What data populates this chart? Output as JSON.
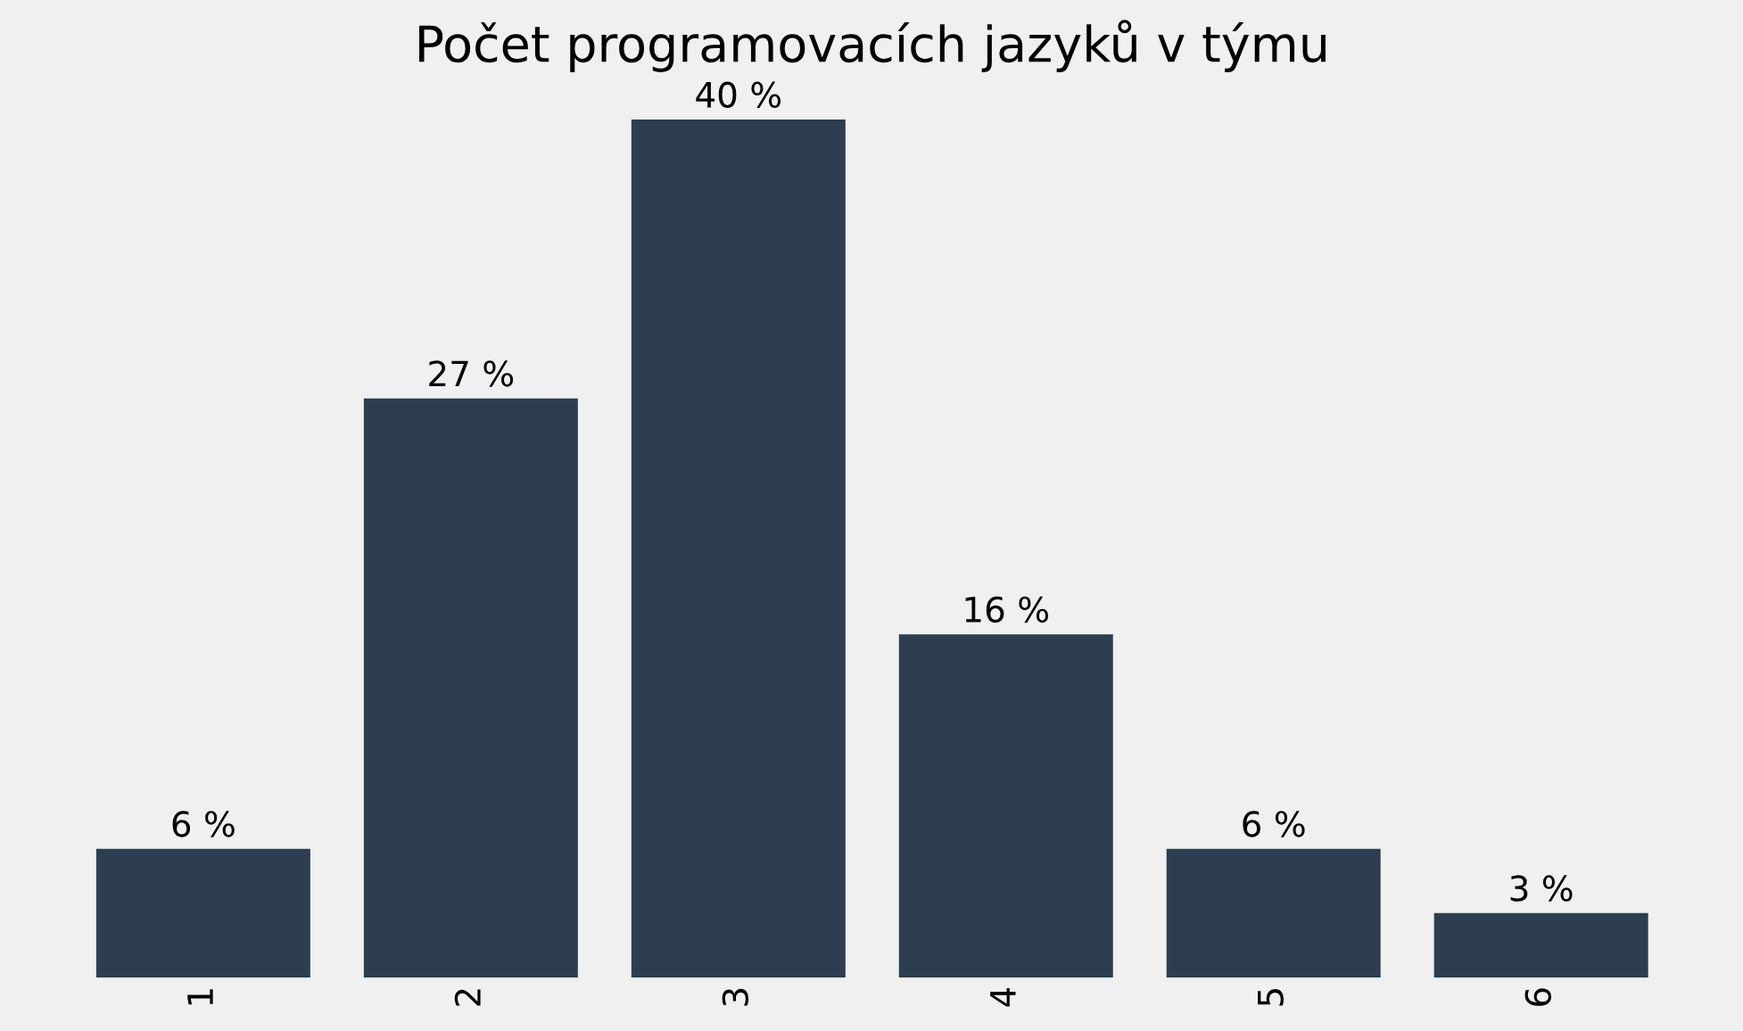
{
  "chart_data": {
    "type": "bar",
    "title": "Počet programovacích jazyků v týmu",
    "categories": [
      "1",
      "2",
      "3",
      "4",
      "5",
      "6"
    ],
    "values": [
      6,
      27,
      40,
      16,
      6,
      3
    ],
    "color": "#2c3e50",
    "value_labels": [
      "6 %",
      "27 %",
      "40 %",
      "16 %",
      "6 %",
      "3 %"
    ],
    "tick_labels": "x"
  }
}
